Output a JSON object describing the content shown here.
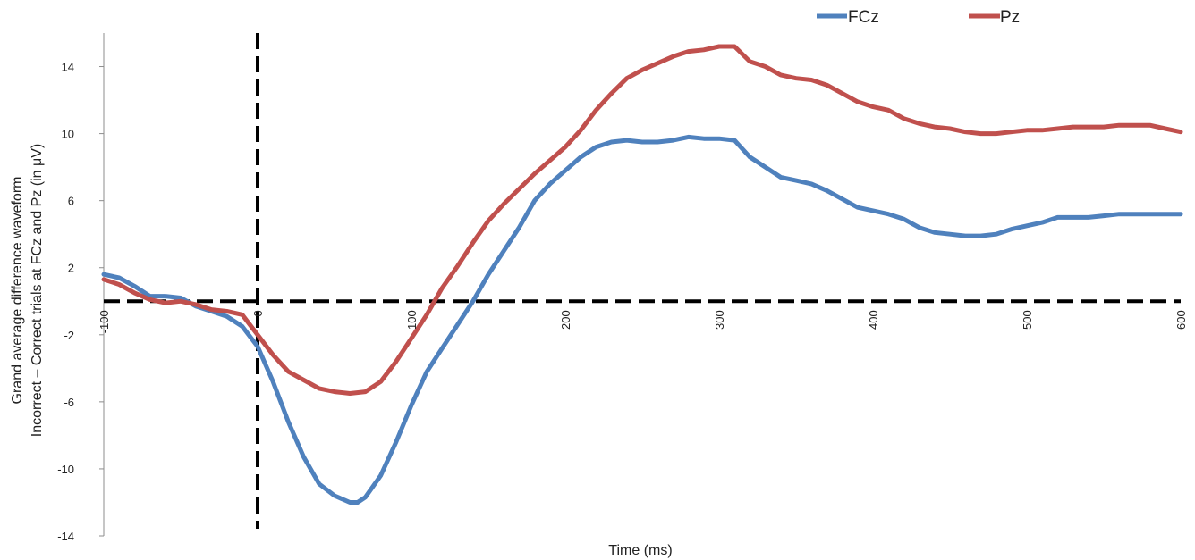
{
  "chart_data": {
    "type": "line",
    "xlabel": "Time (ms)",
    "ylabel": [
      "Grand average difference waveform",
      "Incorrect – Correct trials at FCz and Pz (in μV)"
    ],
    "xlim": [
      -100,
      600
    ],
    "ylim": [
      -14,
      16
    ],
    "x_ticks": [
      -100,
      0,
      100,
      200,
      300,
      400,
      500,
      600
    ],
    "y_ticks": [
      -14,
      -10,
      -6,
      -2,
      2,
      6,
      10,
      14
    ],
    "x_tick_labels": [
      "-100",
      "0",
      "100",
      "200",
      "300",
      "400",
      "500",
      "600"
    ],
    "y_tick_labels": [
      "-14",
      "-10",
      "-6",
      "-2",
      "2",
      "6",
      "10",
      "14"
    ],
    "legend_position": "top-right",
    "reference_lines": {
      "x": 0,
      "y": 0,
      "style": "dashed",
      "color": "#000000"
    },
    "series": [
      {
        "name": "FCz",
        "color": "#4F81BD",
        "points": [
          [
            -100,
            1.6
          ],
          [
            -90,
            1.4
          ],
          [
            -80,
            0.9
          ],
          [
            -70,
            0.3
          ],
          [
            -60,
            0.3
          ],
          [
            -50,
            0.2
          ],
          [
            -40,
            -0.3
          ],
          [
            -30,
            -0.6
          ],
          [
            -20,
            -0.9
          ],
          [
            -10,
            -1.5
          ],
          [
            0,
            -2.7
          ],
          [
            10,
            -4.8
          ],
          [
            20,
            -7.2
          ],
          [
            30,
            -9.3
          ],
          [
            40,
            -10.9
          ],
          [
            50,
            -11.6
          ],
          [
            60,
            -12.0
          ],
          [
            65,
            -12.0
          ],
          [
            70,
            -11.7
          ],
          [
            80,
            -10.4
          ],
          [
            90,
            -8.4
          ],
          [
            100,
            -6.2
          ],
          [
            110,
            -4.2
          ],
          [
            120,
            -2.8
          ],
          [
            130,
            -1.4
          ],
          [
            140,
            0.0
          ],
          [
            150,
            1.6
          ],
          [
            160,
            3.0
          ],
          [
            170,
            4.4
          ],
          [
            180,
            6.0
          ],
          [
            190,
            7.0
          ],
          [
            200,
            7.8
          ],
          [
            210,
            8.6
          ],
          [
            220,
            9.2
          ],
          [
            230,
            9.5
          ],
          [
            240,
            9.6
          ],
          [
            250,
            9.5
          ],
          [
            260,
            9.5
          ],
          [
            270,
            9.6
          ],
          [
            280,
            9.8
          ],
          [
            290,
            9.7
          ],
          [
            300,
            9.7
          ],
          [
            310,
            9.6
          ],
          [
            320,
            8.6
          ],
          [
            330,
            8.0
          ],
          [
            340,
            7.4
          ],
          [
            350,
            7.2
          ],
          [
            360,
            7.0
          ],
          [
            370,
            6.6
          ],
          [
            380,
            6.1
          ],
          [
            390,
            5.6
          ],
          [
            400,
            5.4
          ],
          [
            410,
            5.2
          ],
          [
            420,
            4.9
          ],
          [
            430,
            4.4
          ],
          [
            440,
            4.1
          ],
          [
            450,
            4.0
          ],
          [
            460,
            3.9
          ],
          [
            470,
            3.9
          ],
          [
            480,
            4.0
          ],
          [
            490,
            4.3
          ],
          [
            500,
            4.5
          ],
          [
            510,
            4.7
          ],
          [
            520,
            5.0
          ],
          [
            530,
            5.0
          ],
          [
            540,
            5.0
          ],
          [
            550,
            5.1
          ],
          [
            560,
            5.2
          ],
          [
            570,
            5.2
          ],
          [
            580,
            5.2
          ],
          [
            590,
            5.2
          ],
          [
            600,
            5.2
          ]
        ]
      },
      {
        "name": "Pz",
        "color": "#C0504D",
        "points": [
          [
            -100,
            1.3
          ],
          [
            -90,
            1.0
          ],
          [
            -80,
            0.5
          ],
          [
            -70,
            0.1
          ],
          [
            -60,
            -0.1
          ],
          [
            -50,
            0.0
          ],
          [
            -40,
            -0.2
          ],
          [
            -30,
            -0.5
          ],
          [
            -20,
            -0.6
          ],
          [
            -10,
            -0.8
          ],
          [
            0,
            -2.0
          ],
          [
            10,
            -3.2
          ],
          [
            20,
            -4.2
          ],
          [
            30,
            -4.7
          ],
          [
            40,
            -5.2
          ],
          [
            50,
            -5.4
          ],
          [
            60,
            -5.5
          ],
          [
            70,
            -5.4
          ],
          [
            80,
            -4.8
          ],
          [
            90,
            -3.6
          ],
          [
            100,
            -2.2
          ],
          [
            110,
            -0.8
          ],
          [
            120,
            0.8
          ],
          [
            130,
            2.1
          ],
          [
            140,
            3.5
          ],
          [
            150,
            4.8
          ],
          [
            160,
            5.8
          ],
          [
            170,
            6.7
          ],
          [
            180,
            7.6
          ],
          [
            190,
            8.4
          ],
          [
            200,
            9.2
          ],
          [
            210,
            10.2
          ],
          [
            220,
            11.4
          ],
          [
            230,
            12.4
          ],
          [
            240,
            13.3
          ],
          [
            250,
            13.8
          ],
          [
            260,
            14.2
          ],
          [
            270,
            14.6
          ],
          [
            280,
            14.9
          ],
          [
            290,
            15.0
          ],
          [
            300,
            15.2
          ],
          [
            310,
            15.2
          ],
          [
            320,
            14.3
          ],
          [
            330,
            14.0
          ],
          [
            340,
            13.5
          ],
          [
            350,
            13.3
          ],
          [
            360,
            13.2
          ],
          [
            370,
            12.9
          ],
          [
            380,
            12.4
          ],
          [
            390,
            11.9
          ],
          [
            400,
            11.6
          ],
          [
            410,
            11.4
          ],
          [
            420,
            10.9
          ],
          [
            430,
            10.6
          ],
          [
            440,
            10.4
          ],
          [
            450,
            10.3
          ],
          [
            460,
            10.1
          ],
          [
            470,
            10.0
          ],
          [
            480,
            10.0
          ],
          [
            490,
            10.1
          ],
          [
            500,
            10.2
          ],
          [
            510,
            10.2
          ],
          [
            520,
            10.3
          ],
          [
            530,
            10.4
          ],
          [
            540,
            10.4
          ],
          [
            550,
            10.4
          ],
          [
            560,
            10.5
          ],
          [
            570,
            10.5
          ],
          [
            580,
            10.5
          ],
          [
            590,
            10.3
          ],
          [
            600,
            10.1
          ]
        ]
      }
    ]
  }
}
